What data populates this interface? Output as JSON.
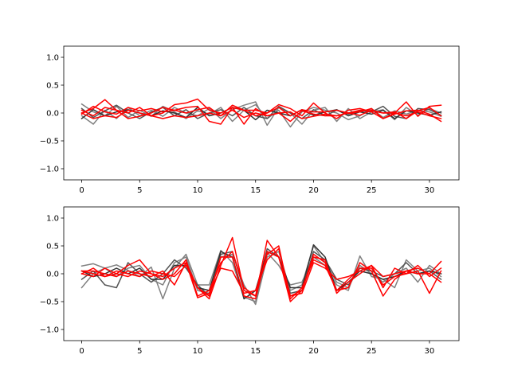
{
  "chart_data": [
    {
      "type": "line",
      "panel": "top",
      "xlim": [
        -1.55,
        32.55
      ],
      "ylim": [
        -1.2,
        1.2
      ],
      "xticks": [
        0,
        5,
        10,
        15,
        20,
        25,
        30
      ],
      "xtick_labels": [
        "0",
        "5",
        "10",
        "15",
        "20",
        "25",
        "30"
      ],
      "yticks": [
        -1.0,
        -0.5,
        0.0,
        0.5,
        1.0
      ],
      "ytick_labels": [
        "−1.0",
        "−0.5",
        "0.0",
        "0.5",
        "1.0"
      ],
      "grid": false,
      "series": [
        {
          "color": "#808080",
          "opacity": 1.0,
          "values": [
            0.16,
            0.02,
            -0.05,
            0.12,
            -0.08,
            0.05,
            -0.06,
            0.12,
            0.02,
            -0.1,
            0.04,
            -0.02,
            0.1,
            -0.15,
            0.05,
            0.15,
            -0.1,
            0.05,
            -0.25,
            0.02,
            0.1,
            0.05,
            0.0,
            -0.12,
            -0.05,
            0.08,
            -0.08,
            0.04,
            -0.02,
            0.05,
            0.02,
            -0.06
          ]
        },
        {
          "color": "#808080",
          "opacity": 1.0,
          "values": [
            -0.05,
            -0.2,
            0.05,
            -0.1,
            0.1,
            -0.05,
            0.05,
            -0.06,
            0.1,
            0.0,
            -0.05,
            0.08,
            -0.1,
            0.06,
            0.14,
            0.2,
            -0.22,
            0.1,
            0.0,
            -0.2,
            0.05,
            0.1,
            -0.15,
            0.08,
            -0.1,
            0.02,
            0.06,
            -0.12,
            0.1,
            -0.04,
            0.08,
            0.0
          ]
        },
        {
          "color": "#555555",
          "opacity": 1.0,
          "values": [
            0.08,
            -0.08,
            0.04,
            0.14,
            0.0,
            -0.1,
            0.02,
            0.1,
            -0.05,
            0.06,
            -0.1,
            0.0,
            0.06,
            -0.05,
            0.1,
            -0.05,
            -0.1,
            0.12,
            0.0,
            -0.1,
            0.06,
            -0.05,
            0.05,
            -0.02,
            0.04,
            0.02,
            0.12,
            -0.06,
            -0.1,
            0.08,
            0.06,
            -0.04
          ]
        },
        {
          "color": "#333333",
          "opacity": 1.0,
          "values": [
            -0.1,
            0.06,
            -0.05,
            0.02,
            0.06,
            0.0,
            -0.05,
            0.04,
            0.0,
            -0.08,
            0.1,
            -0.05,
            0.0,
            0.1,
            0.05,
            -0.12,
            0.05,
            0.0,
            -0.05,
            0.06,
            -0.04,
            0.02,
            0.06,
            -0.05,
            0.02,
            -0.02,
            0.05,
            -0.1,
            0.04,
            0.0,
            -0.04,
            0.02
          ]
        },
        {
          "color": "#ff0000",
          "opacity": 1.0,
          "values": [
            0.0,
            0.08,
            0.24,
            0.05,
            0.0,
            0.1,
            -0.05,
            0.0,
            0.15,
            0.18,
            0.25,
            0.05,
            0.0,
            0.1,
            0.05,
            -0.05,
            0.0,
            0.15,
            0.08,
            -0.05,
            0.18,
            0.0,
            -0.1,
            0.05,
            0.08,
            0.02,
            -0.1,
            0.0,
            0.2,
            -0.06,
            0.12,
            0.14
          ]
        },
        {
          "color": "#ff0000",
          "opacity": 1.0,
          "values": [
            -0.02,
            0.12,
            0.02,
            -0.02,
            0.1,
            0.04,
            0.08,
            0.02,
            0.05,
            0.0,
            0.06,
            0.1,
            -0.05,
            0.14,
            0.05,
            0.05,
            0.0,
            0.1,
            -0.05,
            0.06,
            0.02,
            0.02,
            0.05,
            0.0,
            0.05,
            0.04,
            0.0,
            0.02,
            -0.1,
            0.04,
            0.1,
            -0.05
          ]
        },
        {
          "color": "#ff0000",
          "opacity": 1.0,
          "values": [
            0.05,
            -0.05,
            0.1,
            0.05,
            -0.1,
            -0.06,
            0.0,
            0.1,
            0.05,
            0.1,
            0.12,
            -0.15,
            -0.2,
            0.1,
            -0.2,
            0.08,
            -0.05,
            0.0,
            -0.15,
            0.04,
            -0.02,
            -0.05,
            -0.05,
            0.0,
            0.02,
            0.08,
            -0.1,
            -0.02,
            0.04,
            0.05,
            -0.02,
            -0.15
          ]
        },
        {
          "color": "#ff0000",
          "opacity": 1.0,
          "values": [
            0.0,
            -0.1,
            -0.05,
            -0.08,
            0.05,
            0.0,
            -0.05,
            -0.1,
            -0.05,
            -0.08,
            -0.05,
            0.0,
            -0.05,
            0.05,
            -0.08,
            0.0,
            -0.05,
            0.0,
            0.02,
            -0.1,
            -0.06,
            -0.02,
            -0.05,
            0.0,
            -0.04,
            0.05,
            0.0,
            0.0,
            -0.05,
            0.02,
            -0.05,
            -0.1
          ]
        }
      ]
    },
    {
      "type": "line",
      "panel": "bottom",
      "xlim": [
        -1.55,
        32.55
      ],
      "ylim": [
        -1.2,
        1.2
      ],
      "xticks": [
        0,
        5,
        10,
        15,
        20,
        25,
        30
      ],
      "xtick_labels": [
        "0",
        "5",
        "10",
        "15",
        "20",
        "25",
        "30"
      ],
      "yticks": [
        -1.0,
        -0.5,
        0.0,
        0.5,
        1.0
      ],
      "ytick_labels": [
        "−1.0",
        "−0.5",
        "0.0",
        "0.5",
        "1.0"
      ],
      "grid": false,
      "series": [
        {
          "color": "#808080",
          "opacity": 1.0,
          "values": [
            0.14,
            0.18,
            0.1,
            0.16,
            0.06,
            -0.05,
            0.12,
            -0.45,
            0.1,
            0.35,
            -0.2,
            -0.2,
            0.42,
            0.2,
            -0.42,
            -0.5,
            0.38,
            0.15,
            -0.2,
            -0.15,
            0.3,
            0.15,
            -0.2,
            -0.3,
            0.32,
            -0.05,
            -0.1,
            -0.25,
            0.25,
            0.05,
            0.1,
            -0.05
          ]
        },
        {
          "color": "#808080",
          "opacity": 1.0,
          "values": [
            -0.25,
            0.0,
            0.1,
            -0.05,
            0.1,
            0.15,
            -0.1,
            -0.2,
            0.2,
            0.3,
            -0.3,
            -0.35,
            0.3,
            0.35,
            -0.2,
            -0.55,
            0.3,
            0.4,
            -0.3,
            -0.2,
            0.5,
            0.2,
            -0.15,
            -0.25,
            0.15,
            0.0,
            -0.15,
            0.0,
            0.1,
            -0.15,
            0.15,
            0.0
          ]
        },
        {
          "color": "#555555",
          "opacity": 1.0,
          "values": [
            -0.1,
            0.05,
            -0.2,
            -0.25,
            0.2,
            0.0,
            -0.15,
            0.0,
            0.25,
            0.1,
            -0.2,
            -0.4,
            0.35,
            0.4,
            -0.3,
            -0.4,
            0.45,
            0.3,
            -0.35,
            -0.3,
            0.4,
            0.25,
            -0.1,
            -0.2,
            0.1,
            0.05,
            -0.05,
            0.0,
            0.2,
            0.0,
            0.05,
            -0.1
          ]
        },
        {
          "color": "#333333",
          "opacity": 1.0,
          "values": [
            0.05,
            -0.05,
            0.0,
            0.1,
            0.0,
            0.1,
            -0.1,
            -0.1,
            0.15,
            0.15,
            -0.25,
            -0.3,
            0.4,
            0.3,
            -0.45,
            -0.3,
            0.4,
            0.3,
            -0.25,
            -0.25,
            0.52,
            0.3,
            -0.3,
            -0.15,
            0.05,
            0.0,
            -0.1,
            -0.05,
            0.05,
            0.0,
            0.05,
            0.0
          ]
        },
        {
          "color": "#ff0000",
          "opacity": 1.0,
          "values": [
            0.0,
            -0.05,
            0.1,
            0.0,
            0.15,
            0.25,
            0.0,
            -0.05,
            0.1,
            0.2,
            -0.25,
            -0.45,
            0.15,
            0.65,
            -0.3,
            -0.4,
            0.6,
            0.3,
            -0.4,
            -0.3,
            0.35,
            0.2,
            -0.3,
            -0.25,
            0.2,
            0.05,
            -0.4,
            -0.1,
            0.05,
            0.0,
            0.0,
            0.22
          ]
        },
        {
          "color": "#ff0000",
          "opacity": 1.0,
          "values": [
            0.05,
            0.0,
            -0.05,
            0.0,
            -0.05,
            0.05,
            0.0,
            -0.1,
            0.0,
            0.25,
            -0.4,
            -0.3,
            0.2,
            0.4,
            -0.25,
            -0.4,
            0.35,
            0.5,
            -0.45,
            -0.25,
            0.25,
            0.15,
            -0.3,
            -0.1,
            0.1,
            0.1,
            -0.2,
            -0.05,
            0.0,
            0.15,
            -0.05,
            0.1
          ]
        },
        {
          "color": "#ff0000",
          "opacity": 1.0,
          "values": [
            0.0,
            0.1,
            -0.05,
            0.05,
            0.0,
            -0.05,
            0.05,
            0.0,
            -0.05,
            0.15,
            -0.25,
            -0.4,
            0.3,
            0.3,
            -0.4,
            -0.45,
            0.4,
            0.3,
            -0.5,
            -0.3,
            0.3,
            0.25,
            -0.35,
            -0.15,
            0.0,
            0.15,
            -0.25,
            0.1,
            0.0,
            0.05,
            -0.35,
            0.05
          ]
        },
        {
          "color": "#ff0000",
          "opacity": 1.0,
          "values": [
            0.05,
            0.05,
            0.0,
            -0.05,
            0.05,
            0.0,
            -0.05,
            0.05,
            -0.2,
            0.2,
            -0.43,
            -0.35,
            0.1,
            0.05,
            -0.35,
            -0.3,
            0.25,
            0.45,
            -0.4,
            -0.35,
            0.2,
            0.1,
            -0.1,
            -0.05,
            0.05,
            0.15,
            -0.05,
            0.0,
            0.05,
            0.1,
            0.0,
            -0.15
          ]
        }
      ]
    }
  ]
}
